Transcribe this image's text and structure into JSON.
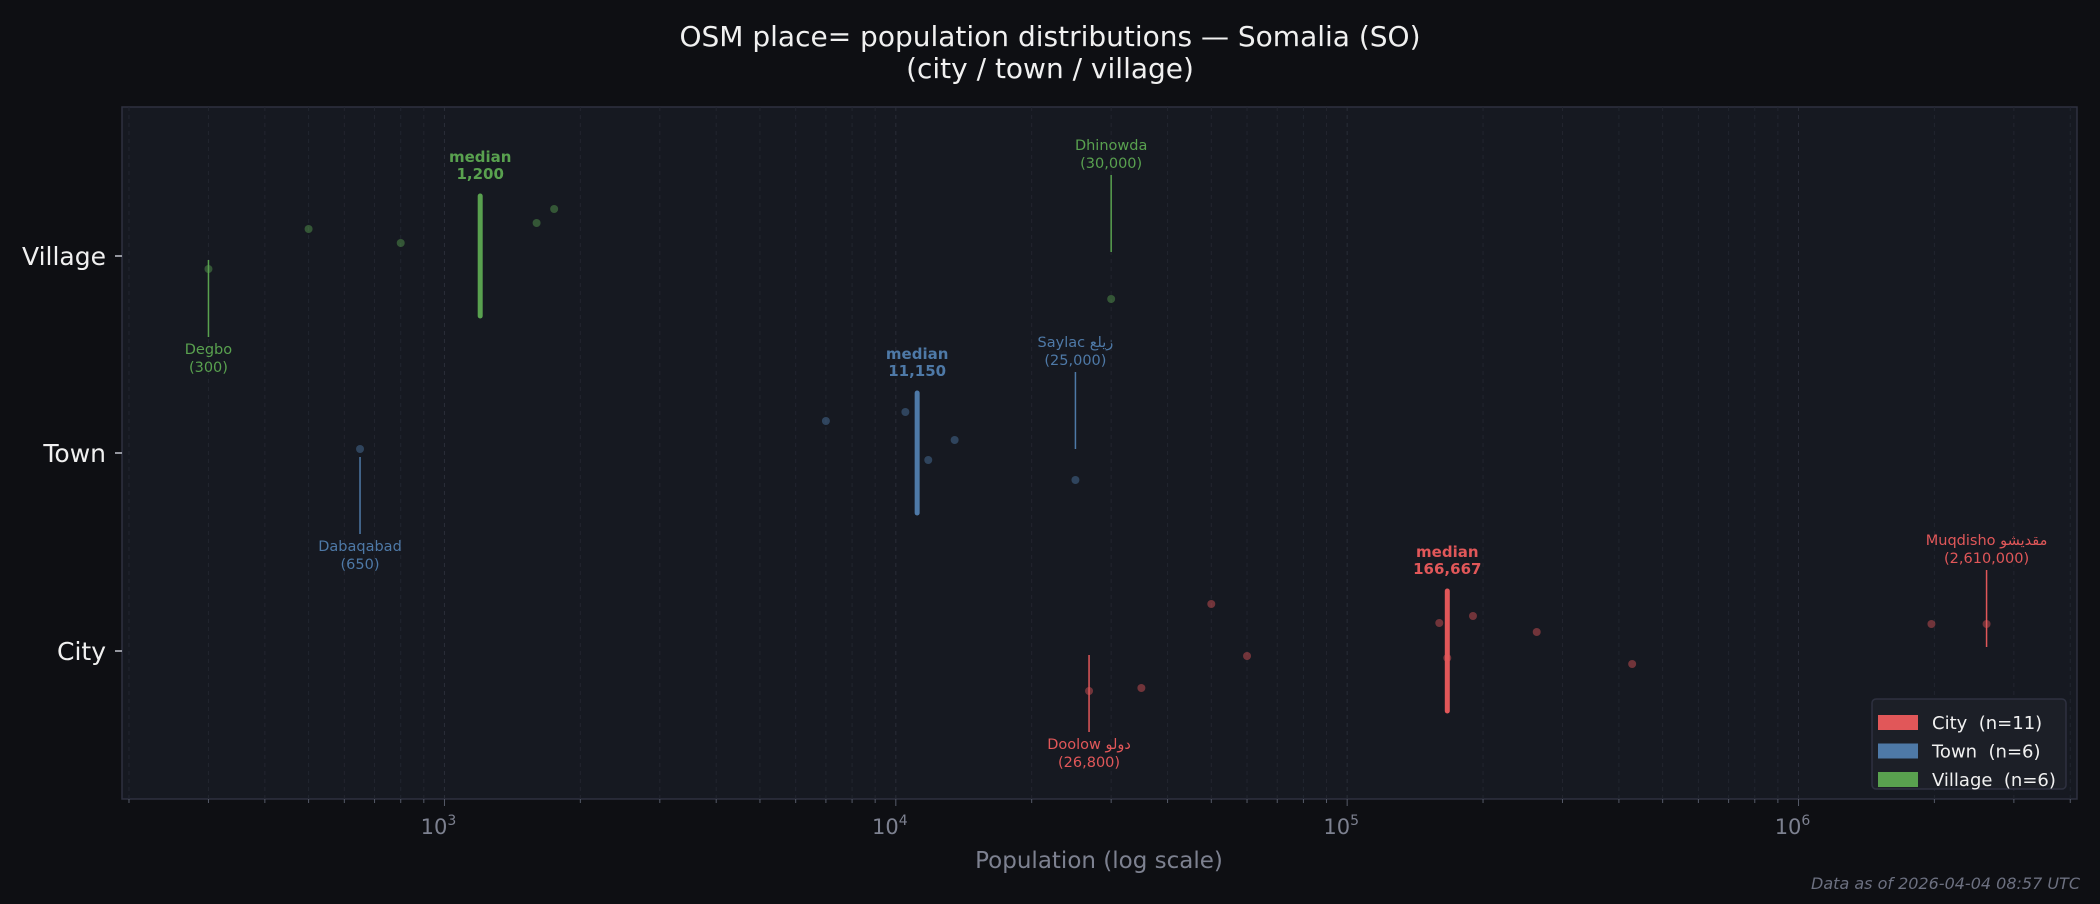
{
  "title_line1": "OSM place= population distributions — Somalia (SO)",
  "title_line2": "(city / town / village)",
  "footer": "Data as of 2026-04-04 08:57 UTC",
  "chart_data": {
    "type": "scatter",
    "title": "OSM place= population distributions — Somalia (SO) (city / town / village)",
    "xlabel": "Population (log scale)",
    "ylabel": "",
    "x_scale": "log",
    "xlim": [
      193,
      4140000
    ],
    "x_ticks": [
      {
        "base": "10",
        "exp": "3",
        "value": 1000
      },
      {
        "base": "10",
        "exp": "4",
        "value": 10000
      },
      {
        "base": "10",
        "exp": "5",
        "value": 100000
      },
      {
        "base": "10",
        "exp": "6",
        "value": 1000000
      }
    ],
    "categories": [
      "City",
      "Town",
      "Village"
    ],
    "grid": true,
    "legend_position": "bottom-right",
    "series": [
      {
        "name": "City",
        "legend": "City  (n=11)",
        "color": "#e15759",
        "values": [
          26800,
          35000,
          50000,
          60000,
          160000,
          166667,
          190000,
          263000,
          428000,
          1970000,
          2610000
        ],
        "median": 166667,
        "median_label": "median",
        "median_value_label": "166,667"
      },
      {
        "name": "Town",
        "legend": "Town  (n=6)",
        "color": "#4e79a7",
        "values": [
          650,
          7000,
          10500,
          11800,
          13500,
          25000
        ],
        "median": 11150,
        "median_label": "median",
        "median_value_label": "11,150"
      },
      {
        "name": "Village",
        "legend": "Village  (n=6)",
        "color": "#59a14f",
        "values": [
          300,
          500,
          800,
          1600,
          1750,
          30000
        ],
        "median": 1200,
        "median_label": "median",
        "median_value_label": "1,200"
      }
    ],
    "annotations": [
      {
        "series": "Village",
        "name": "Degbo",
        "value": 300,
        "value_label": "(300)",
        "position": "below"
      },
      {
        "series": "Village",
        "name": "Dhinowda",
        "value": 30000,
        "value_label": "(30,000)",
        "position": "above"
      },
      {
        "series": "Town",
        "name": "Dabaqabad",
        "value": 650,
        "value_label": "(650)",
        "position": "below"
      },
      {
        "series": "Town",
        "name": "Saylac زيلع",
        "value": 25000,
        "value_label": "(25,000)",
        "position": "above"
      },
      {
        "series": "City",
        "name": "Doolow دولو",
        "value": 26800,
        "value_label": "(26,800)",
        "position": "below"
      },
      {
        "series": "City",
        "name": "Muqdisho مقديشو",
        "value": 2610000,
        "value_label": "(2,610,000)",
        "position": "above"
      }
    ]
  }
}
